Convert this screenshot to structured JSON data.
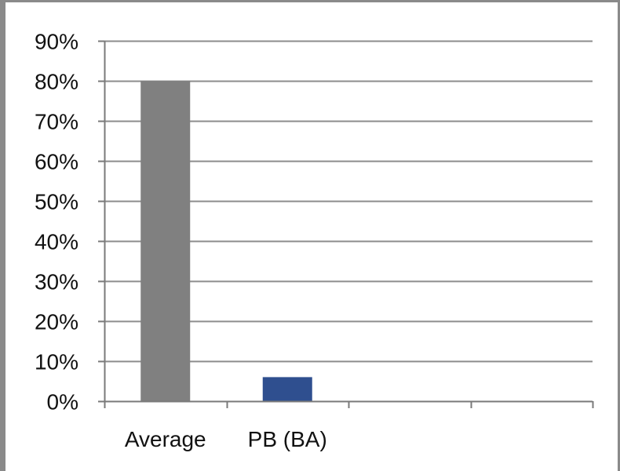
{
  "chart_data": {
    "type": "bar",
    "title": "",
    "xlabel": "",
    "ylabel": "",
    "categories": [
      "Average",
      "PB (BA)",
      "",
      ""
    ],
    "values": [
      0.8,
      0.06,
      null,
      null
    ],
    "bar_colors": [
      "#808080",
      "#2f4f8f",
      null,
      null
    ],
    "ylim": [
      0,
      0.9
    ],
    "y_ticks": [
      0,
      0.1,
      0.2,
      0.3,
      0.4,
      0.5,
      0.6,
      0.7,
      0.8,
      0.9
    ],
    "y_tick_labels": [
      "0%",
      "10%",
      "20%",
      "30%",
      "40%",
      "50%",
      "60%",
      "70%",
      "80%",
      "90%"
    ],
    "grid": true,
    "grid_color": "#8c8c8c",
    "axis_color": "#7a7a7a"
  }
}
